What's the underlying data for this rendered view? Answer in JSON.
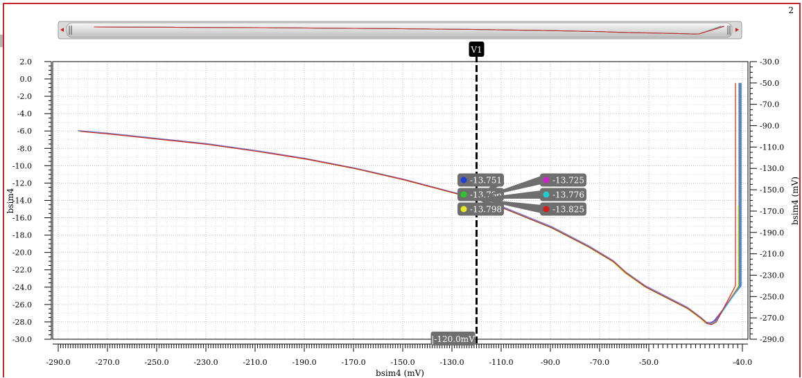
{
  "window": {
    "subwindow_number": "2"
  },
  "chart_data": {
    "type": "line",
    "xlabel": "bsim4 (mV)",
    "ylabel_left": "bsim4",
    "ylabel_right": "bsim4 (mV)",
    "xlim": [
      -290,
      -40
    ],
    "ylim_left": [
      -30,
      2
    ],
    "ylim_right": [
      -290,
      -30
    ],
    "x_ticks": [
      "-290.0",
      "-270.0",
      "-250.0",
      "-230.0",
      "-210.0",
      "-190.0",
      "-170.0",
      "-150.0",
      "-130.0",
      "-110.0",
      "-90.0",
      "-70.0",
      "-50.0",
      "-40.0"
    ],
    "y_ticks_left": [
      "2.0",
      "0.0",
      "-2.0",
      "-4.0",
      "-6.0",
      "-8.0",
      "-10.0",
      "-12.0",
      "-14.0",
      "-16.0",
      "-18.0",
      "-20.0",
      "-22.0",
      "-24.0",
      "-26.0",
      "-28.0",
      "-30.0"
    ],
    "y_ticks_right": [
      "-30.0",
      "-50.0",
      "-70.0",
      "-90.0",
      "-110.0",
      "-130.0",
      "-150.0",
      "-170.0",
      "-190.0",
      "-210.0",
      "-230.0",
      "-250.0",
      "-270.0",
      "-290.0"
    ],
    "grid": true,
    "base_curve": {
      "x": [
        -282,
        -270,
        -250,
        -230,
        -210,
        -190,
        -170,
        -150,
        -130,
        -120,
        -110,
        -90,
        -75,
        -65,
        -60,
        -52,
        -46,
        -44.5,
        -44,
        -43.5,
        -43
      ],
      "y": [
        -6.0,
        -6.3,
        -6.9,
        -7.5,
        -8.3,
        -9.2,
        -10.3,
        -11.6,
        -13.1,
        -13.8,
        -14.8,
        -17.1,
        -19.3,
        -21.0,
        -22.3,
        -23.9,
        -26.4,
        -27.6,
        -28.1,
        -28.2,
        -27.9
      ]
    },
    "series": [
      {
        "name": "",
        "color": "#1f3fd6",
        "value_at_cursor": "-13.751",
        "label_side": "left"
      },
      {
        "name": "",
        "color": "#2ec42e",
        "value_at_cursor": "-13.796",
        "label_side": "left"
      },
      {
        "name": "",
        "color": "#e6e62a",
        "value_at_cursor": "-13.798",
        "label_side": "left"
      },
      {
        "name": "",
        "color": "#cc22cc",
        "value_at_cursor": "-13.725",
        "label_side": "right"
      },
      {
        "name": "",
        "color": "#22cccc",
        "value_at_cursor": "-13.776",
        "label_side": "right"
      },
      {
        "name": "",
        "color": "#d21e1e",
        "value_at_cursor": "-13.825",
        "label_side": "right"
      }
    ],
    "vertical_marker": {
      "name": "V1",
      "x": -120,
      "x_label": "-120.0mV"
    }
  }
}
